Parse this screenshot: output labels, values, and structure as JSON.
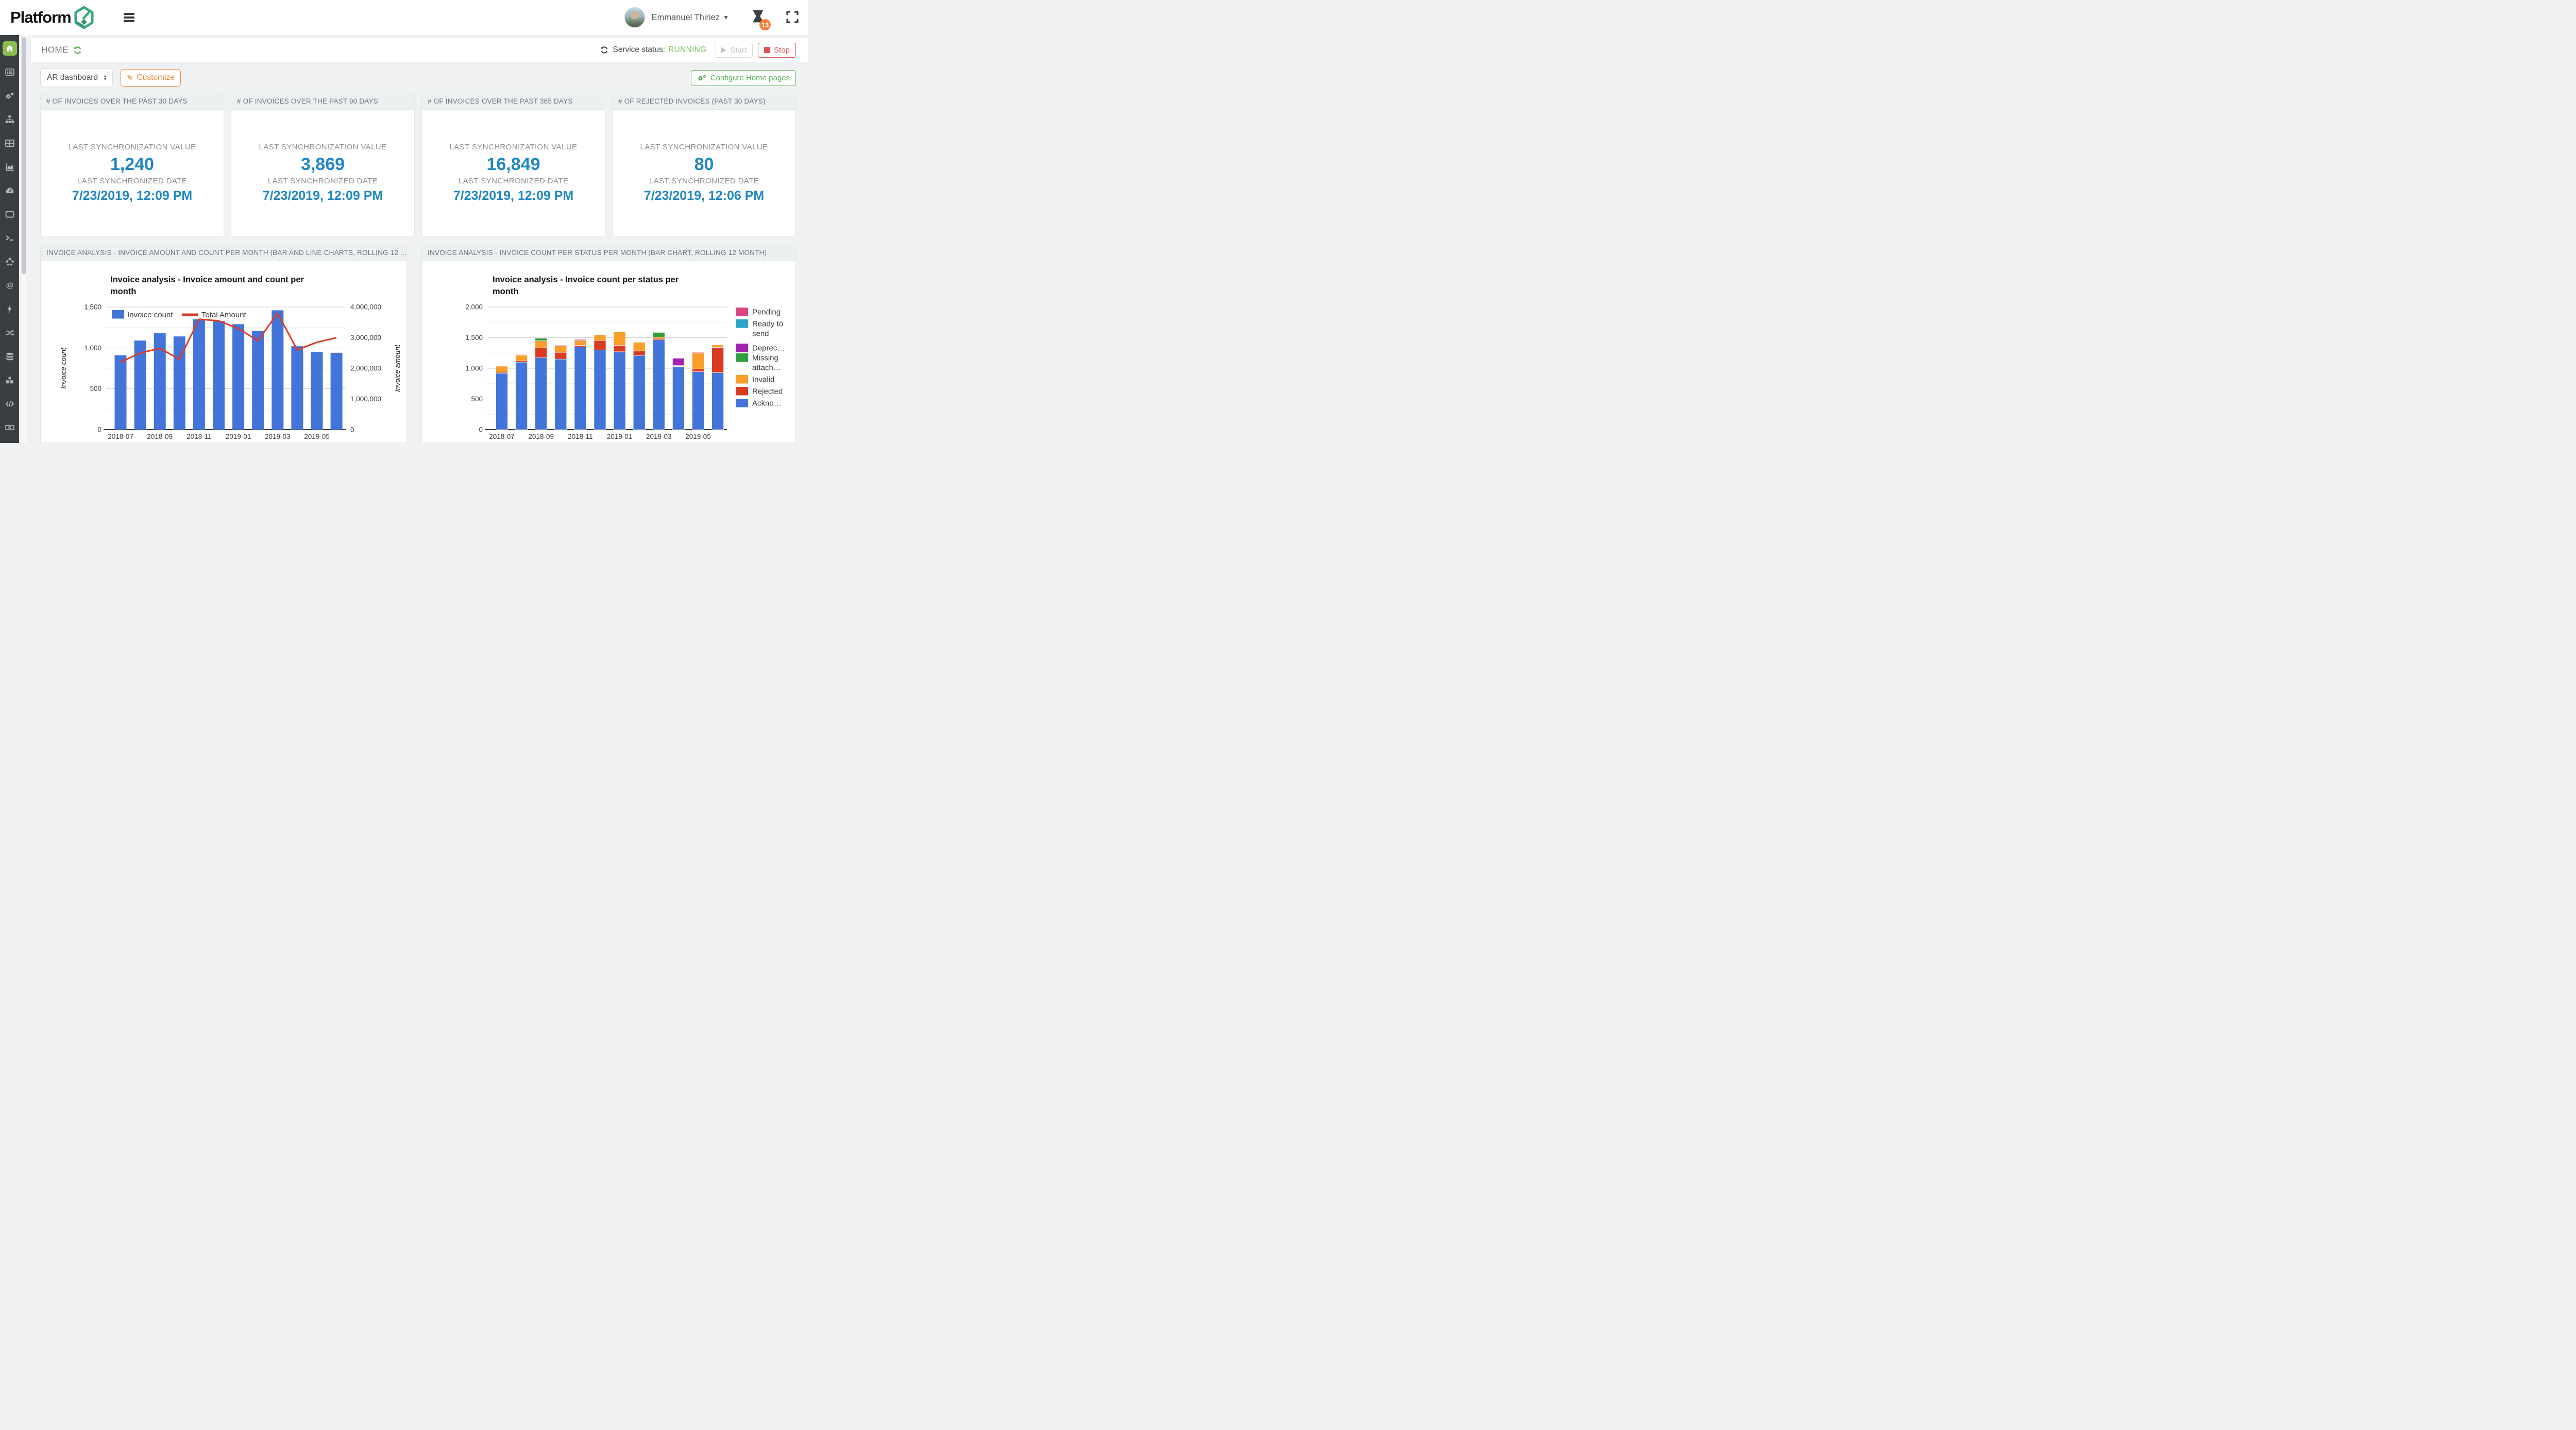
{
  "topbar": {
    "logo_text": "Platform",
    "logo_badge": "6",
    "user_name": "Emmanuel Thiriez",
    "notification_count": "13"
  },
  "statusbar": {
    "page_title": "HOME",
    "service_status_label": "Service status:",
    "service_status_value": "RUNNING",
    "start_label": "Start",
    "stop_label": "Stop"
  },
  "controls": {
    "dashboard_select_value": "AR dashboard",
    "customize_label": "Customize",
    "configure_label": "Configure Home pages"
  },
  "kpi_cards": [
    {
      "title": "# OF INVOICES OVER THE PAST 30 DAYS",
      "value_label": "LAST SYNCHRONIZATION VALUE",
      "value": "1,240",
      "date_label": "LAST SYNCHRONIZED DATE",
      "date": "7/23/2019, 12:09 PM"
    },
    {
      "title": "# OF INVOICES OVER THE PAST 90 DAYS",
      "value_label": "LAST SYNCHRONIZATION VALUE",
      "value": "3,869",
      "date_label": "LAST SYNCHRONIZED DATE",
      "date": "7/23/2019, 12:09 PM"
    },
    {
      "title": "# OF INVOICES OVER THE PAST 365 DAYS",
      "value_label": "LAST SYNCHRONIZATION VALUE",
      "value": "16,849",
      "date_label": "LAST SYNCHRONIZED DATE",
      "date": "7/23/2019, 12:09 PM"
    },
    {
      "title": "# OF REJECTED INVOICES (PAST 30 DAYS)",
      "value_label": "LAST SYNCHRONIZATION VALUE",
      "value": "80",
      "date_label": "LAST SYNCHRONIZED DATE",
      "date": "7/23/2019, 12:06 PM"
    }
  ],
  "sections": [
    {
      "header": "INVOICE ANALYSIS - INVOICE AMOUNT AND COUNT PER MONTH (BAR AND LINE CHARTS, ROLLING 12 ..."
    },
    {
      "header": "INVOICE ANALYSIS - INVOICE COUNT PER STATUS PER MONTH (BAR CHART, ROLLING 12 MONTH)"
    }
  ],
  "sidebar": {
    "items": [
      "home",
      "list",
      "gears",
      "sitemap",
      "table",
      "area-chart",
      "gauge",
      "window",
      "terminal",
      "nodes",
      "at-sign",
      "bolt",
      "shuffle",
      "database",
      "cubes",
      "code",
      "banknote"
    ],
    "active_item": "home"
  },
  "colors": {
    "accent_green": "#56b055",
    "active_home_green": "#8cbe52",
    "accent_orange": "#ee8a3c",
    "stop_red": "#e05252",
    "running_green": "#7cc25e",
    "kpi_blue": "#2187c3",
    "badge_orange": "#f0813c"
  },
  "chart_data": [
    {
      "type": "bar",
      "subtype": "combo-bar-line",
      "title": "Invoice analysis - Invoice amount and count per month",
      "title_lines": [
        "Invoice analysis - Invoice amount and count per",
        "month"
      ],
      "categories": [
        "2018-07",
        "2018-08",
        "2018-09",
        "2018-10",
        "2018-11",
        "2018-12",
        "2019-01",
        "2019-02",
        "2019-03",
        "2019-04",
        "2019-05",
        "2019-06"
      ],
      "x_tick_labels": [
        "2018-07",
        "2018-09",
        "2018-11",
        "2019-01",
        "2019-03",
        "2019-05"
      ],
      "series": [
        {
          "name": "Invoice count",
          "type": "bar",
          "axis": "left",
          "color": "#4374d9",
          "values": [
            910,
            1090,
            1180,
            1140,
            1350,
            1330,
            1290,
            1210,
            1460,
            1020,
            950,
            940
          ]
        },
        {
          "name": "Total Amount",
          "type": "line",
          "axis": "right",
          "color": "#dc3b26",
          "values": [
            2200000,
            2500000,
            2650000,
            2300000,
            3600000,
            3550000,
            3300000,
            2900000,
            3800000,
            2600000,
            2850000,
            3000000
          ]
        }
      ],
      "left_axis": {
        "title": "Invoice count",
        "min": 0,
        "max": 1500,
        "ticks": [
          0,
          500,
          1000,
          1500
        ]
      },
      "right_axis": {
        "title": "Invoice amount",
        "min": 0,
        "max": 4000000,
        "ticks": [
          0,
          1000000,
          2000000,
          3000000,
          4000000
        ]
      },
      "legend_position": "inside-top-left",
      "grid": true
    },
    {
      "type": "bar",
      "subtype": "stacked-bar",
      "title": "Invoice analysis - Invoice count per status per month",
      "title_lines": [
        "Invoice analysis - Invoice count per status per",
        "month"
      ],
      "categories": [
        "2018-07",
        "2018-08",
        "2018-09",
        "2018-10",
        "2018-11",
        "2018-12",
        "2019-01",
        "2019-02",
        "2019-03",
        "2019-04",
        "2019-05",
        "2019-06"
      ],
      "x_tick_labels": [
        "2018-07",
        "2018-09",
        "2018-11",
        "2019-01",
        "2019-03",
        "2019-05"
      ],
      "left_axis": {
        "title": "",
        "min": 0,
        "max": 2000,
        "ticks": [
          0,
          500,
          1000,
          1500,
          2000
        ]
      },
      "series": [
        {
          "name": "Acknowledged",
          "color": "#4374d9",
          "values": [
            920,
            1100,
            1175,
            1150,
            1350,
            1300,
            1270,
            1210,
            1465,
            1020,
            945,
            930
          ]
        },
        {
          "name": "Rejected",
          "color": "#d93b22",
          "values": [
            15,
            25,
            160,
            110,
            25,
            155,
            105,
            75,
            25,
            10,
            45,
            410
          ]
        },
        {
          "name": "Invalid",
          "color": "#f99d2b",
          "values": [
            100,
            90,
            115,
            105,
            80,
            90,
            220,
            140,
            20,
            15,
            260,
            40
          ]
        },
        {
          "name": "Missing attachment",
          "color": "#2e9e3e",
          "values": [
            0,
            0,
            40,
            0,
            0,
            0,
            0,
            0,
            75,
            0,
            0,
            0
          ]
        },
        {
          "name": "Deprecated",
          "color": "#a023b2",
          "values": [
            0,
            0,
            8,
            10,
            15,
            0,
            0,
            0,
            0,
            120,
            0,
            0
          ]
        },
        {
          "name": "Ready to send",
          "color": "#29a4c9",
          "values": [
            0,
            0,
            0,
            0,
            0,
            0,
            0,
            0,
            0,
            0,
            0,
            0
          ]
        },
        {
          "name": "Pending",
          "color": "#d8487e",
          "values": [
            10,
            8,
            8,
            0,
            0,
            0,
            0,
            0,
            0,
            0,
            10,
            0
          ]
        }
      ],
      "legend_position": "right",
      "legend": [
        {
          "lines": [
            "Pending"
          ],
          "color": "#d8487e"
        },
        {
          "lines": [
            "Ready to",
            "send"
          ],
          "color": "#29a4c9"
        },
        {
          "lines": [
            "Deprec…"
          ],
          "color": "#a023b2"
        },
        {
          "lines": [
            "Missing",
            "attach…"
          ],
          "color": "#2e9e3e"
        },
        {
          "lines": [
            "Invalid"
          ],
          "color": "#f99d2b"
        },
        {
          "lines": [
            "Rejected"
          ],
          "color": "#d93b22"
        },
        {
          "lines": [
            "Ackno…"
          ],
          "color": "#4374d9"
        }
      ],
      "grid": true
    }
  ]
}
